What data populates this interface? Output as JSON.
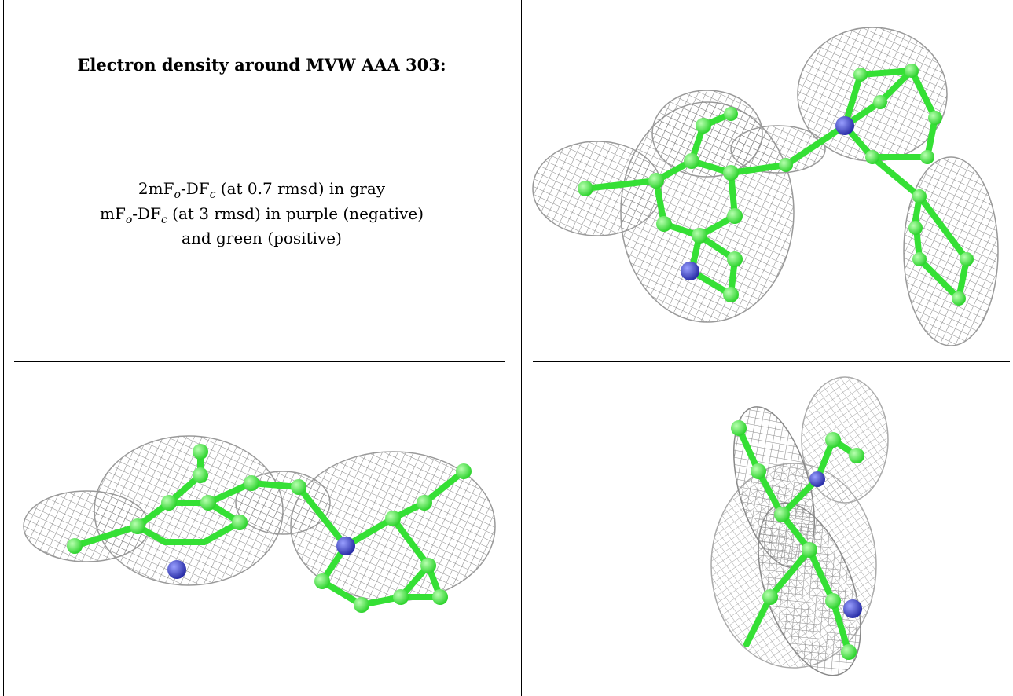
{
  "caption": {
    "title": "Electron density around MVW AAA 303:",
    "lines": [
      [
        "2mF",
        "o",
        "-DF",
        "c",
        " (at 0.7 rmsd) in gray"
      ],
      [
        "mF",
        "o",
        "-DF",
        "c",
        " (at 3 rmsd) in purple (negative)"
      ],
      [
        "and green (positive)"
      ]
    ]
  }
}
